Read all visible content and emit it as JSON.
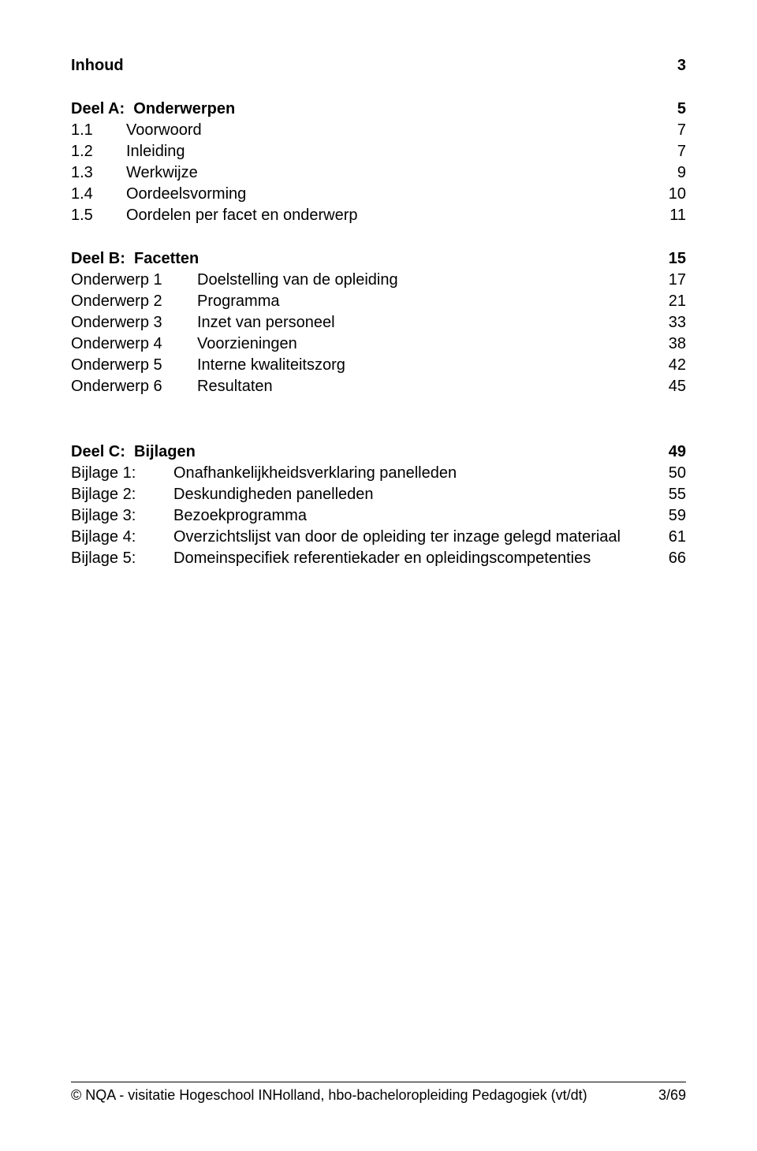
{
  "toc": {
    "title": {
      "label": "Inhoud",
      "page": "3"
    },
    "partA": {
      "heading": {
        "label": "Deel A:  Onderwerpen",
        "page": "5"
      },
      "items": [
        {
          "num": "1.1",
          "label": "Voorwoord",
          "page": "7"
        },
        {
          "num": "1.2",
          "label": "Inleiding",
          "page": "7"
        },
        {
          "num": "1.3",
          "label": "Werkwijze",
          "page": "9"
        },
        {
          "num": "1.4",
          "label": "Oordeelsvorming",
          "page": "10"
        },
        {
          "num": "1.5",
          "label": "Oordelen per facet en onderwerp",
          "page": "11"
        }
      ]
    },
    "partB": {
      "heading": {
        "label": "Deel B:  Facetten",
        "page": "15"
      },
      "items": [
        {
          "num": "Onderwerp 1",
          "label": "Doelstelling van de opleiding",
          "page": "17"
        },
        {
          "num": "Onderwerp 2",
          "label": "Programma",
          "page": "21"
        },
        {
          "num": "Onderwerp 3",
          "label": "Inzet van personeel",
          "page": "33"
        },
        {
          "num": "Onderwerp 4",
          "label": "Voorzieningen",
          "page": "38"
        },
        {
          "num": "Onderwerp 5",
          "label": "Interne kwaliteitszorg",
          "page": "42"
        },
        {
          "num": "Onderwerp 6",
          "label": "Resultaten",
          "page": "45"
        }
      ]
    },
    "partC": {
      "heading": {
        "label": "Deel C:  Bijlagen",
        "page": "49"
      },
      "items": [
        {
          "num": "Bijlage 1:",
          "label": "Onafhankelijkheidsverklaring panelleden",
          "page": "50"
        },
        {
          "num": "Bijlage 2:",
          "label": "Deskundigheden panelleden",
          "page": "55"
        },
        {
          "num": "Bijlage 3:",
          "label": "Bezoekprogramma",
          "page": "59"
        },
        {
          "num": "Bijlage 4:",
          "label": "Overzichtslijst van door de opleiding ter inzage gelegd materiaal",
          "page": "61"
        },
        {
          "num": "Bijlage 5:",
          "label": "Domeinspecifiek referentiekader en opleidingscompetenties",
          "page": "66"
        }
      ]
    }
  },
  "footer": {
    "text": "© NQA - visitatie Hogeschool INHolland, hbo-bacheloropleiding Pedagogiek (vt/dt)",
    "page": "3/69"
  },
  "layout": {
    "numColWidthA": "70px",
    "numColWidthB": "160px",
    "numColWidthC": "130px"
  }
}
